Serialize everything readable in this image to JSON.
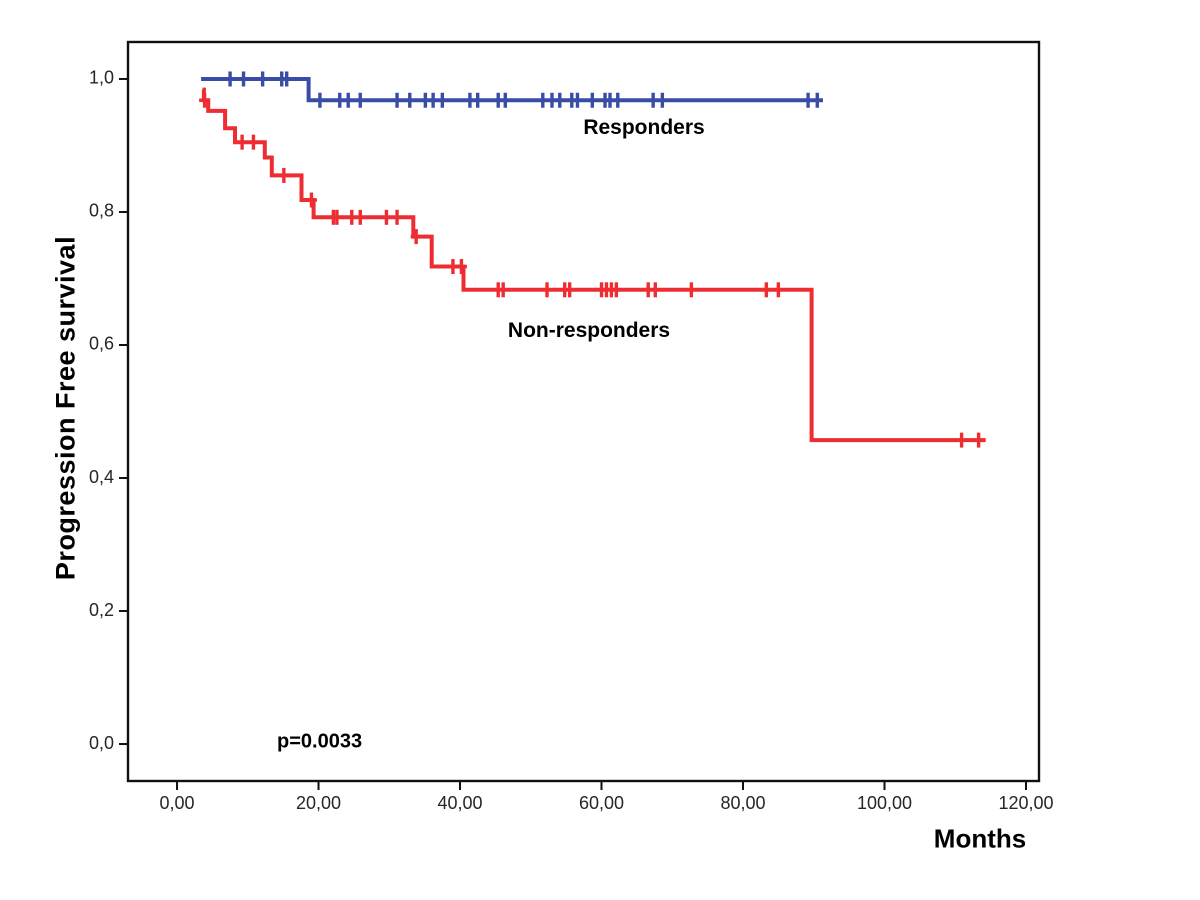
{
  "chart_data": {
    "type": "line",
    "subtype": "kaplan-meier-step",
    "title": "",
    "xlabel": "Months",
    "ylabel": "Progression Free survival",
    "grid": false,
    "legend_position": "inline-labels",
    "xlim": [
      -6.93,
      121.84
    ],
    "ylim": [
      -0.0556,
      1.0556
    ],
    "x_ticks": {
      "values": [
        0,
        20,
        40,
        60,
        80,
        100,
        120
      ],
      "labels": [
        "0,00",
        "20,00",
        "40,00",
        "60,00",
        "80,00",
        "100,00",
        "120,00"
      ]
    },
    "y_ticks": {
      "values": [
        0.0,
        0.2,
        0.4,
        0.6,
        0.8,
        1.0
      ],
      "labels": [
        "0,0",
        "0,2",
        "0,4",
        "0,6",
        "0,8",
        "1,0"
      ]
    },
    "annotations": [
      {
        "text": "p=0.0033",
        "x": 14.1,
        "y": 0.003
      }
    ],
    "series": [
      {
        "name": "Responders",
        "color": "#3A4DA6",
        "steps": [
          [
            3.4,
            1.0
          ],
          [
            18.6,
            0.968
          ]
        ],
        "end_x": 91.3,
        "censors": [
          [
            7.5,
            1.0
          ],
          [
            9.4,
            1.0
          ],
          [
            12.1,
            1.0
          ],
          [
            14.8,
            1.0
          ],
          [
            15.5,
            1.0
          ],
          [
            20.2,
            0.968
          ],
          [
            23.0,
            0.968
          ],
          [
            24.2,
            0.968
          ],
          [
            25.9,
            0.968
          ],
          [
            31.1,
            0.968
          ],
          [
            32.9,
            0.968
          ],
          [
            35.1,
            0.968
          ],
          [
            36.2,
            0.968
          ],
          [
            37.5,
            0.968
          ],
          [
            41.4,
            0.968
          ],
          [
            42.5,
            0.968
          ],
          [
            45.4,
            0.968
          ],
          [
            46.4,
            0.968
          ],
          [
            51.7,
            0.968
          ],
          [
            53.0,
            0.968
          ],
          [
            54.1,
            0.968
          ],
          [
            55.8,
            0.968
          ],
          [
            56.6,
            0.968
          ],
          [
            58.7,
            0.968
          ],
          [
            60.5,
            0.968
          ],
          [
            61.2,
            0.968
          ],
          [
            62.3,
            0.968
          ],
          [
            67.3,
            0.968
          ],
          [
            68.6,
            0.968
          ],
          [
            89.2,
            0.968
          ],
          [
            90.5,
            0.968
          ]
        ]
      },
      {
        "name": "Non-responders",
        "color": "#EE2D32",
        "steps": [
          [
            3.6,
            0.984
          ],
          [
            3.8,
            0.968
          ],
          [
            4.4,
            0.952
          ],
          [
            6.8,
            0.926
          ],
          [
            8.2,
            0.905
          ],
          [
            12.4,
            0.882
          ],
          [
            13.4,
            0.855
          ],
          [
            17.6,
            0.818
          ],
          [
            19.3,
            0.792
          ],
          [
            33.4,
            0.763
          ],
          [
            36.0,
            0.718
          ],
          [
            40.5,
            0.683
          ],
          [
            89.7,
            0.457
          ]
        ],
        "end_x": 114.3,
        "censors": [
          [
            3.9,
            0.968
          ],
          [
            9.2,
            0.905
          ],
          [
            10.8,
            0.905
          ],
          [
            15.1,
            0.855
          ],
          [
            19.0,
            0.818
          ],
          [
            22.1,
            0.792
          ],
          [
            22.6,
            0.792
          ],
          [
            24.7,
            0.792
          ],
          [
            25.9,
            0.792
          ],
          [
            29.6,
            0.792
          ],
          [
            31.1,
            0.792
          ],
          [
            33.8,
            0.763
          ],
          [
            39.0,
            0.718
          ],
          [
            40.2,
            0.718
          ],
          [
            45.4,
            0.683
          ],
          [
            46.1,
            0.683
          ],
          [
            52.3,
            0.683
          ],
          [
            54.8,
            0.683
          ],
          [
            55.5,
            0.683
          ],
          [
            60.0,
            0.683
          ],
          [
            60.7,
            0.683
          ],
          [
            61.4,
            0.683
          ],
          [
            62.1,
            0.683
          ],
          [
            66.6,
            0.683
          ],
          [
            67.6,
            0.683
          ],
          [
            72.7,
            0.683
          ],
          [
            83.3,
            0.683
          ],
          [
            85.0,
            0.683
          ],
          [
            110.9,
            0.457
          ],
          [
            113.3,
            0.457
          ]
        ]
      }
    ],
    "axis_color": "#111111",
    "tick_label_color": "#262626"
  }
}
